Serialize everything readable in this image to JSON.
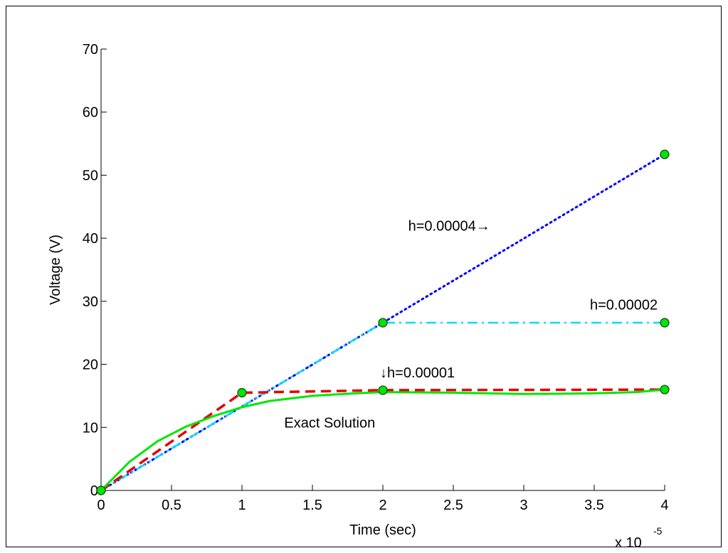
{
  "chart_data": {
    "type": "line",
    "xlabel": "Time (sec)",
    "ylabel": "Voltage (V)",
    "x_multiplier": "x 10",
    "x_multiplier_exp": "-5",
    "xlim": [
      0,
      4
    ],
    "ylim": [
      0,
      70
    ],
    "xticks": [
      0,
      0.5,
      1,
      1.5,
      2,
      2.5,
      3,
      3.5,
      4
    ],
    "xtick_labels": [
      "0",
      "0.5",
      "1",
      "1.5",
      "2",
      "2.5",
      "3",
      "3.5",
      "4"
    ],
    "yticks": [
      0,
      10,
      20,
      30,
      40,
      50,
      60,
      70
    ],
    "ytick_labels": [
      "0",
      "10",
      "20",
      "30",
      "40",
      "50",
      "60",
      "70"
    ],
    "grid": false,
    "series": [
      {
        "style": "dotted",
        "color": "#0000ff",
        "points": [
          [
            0,
            0
          ],
          [
            2,
            26.6
          ],
          [
            4,
            53.3
          ]
        ]
      },
      {
        "style": "dash-dot",
        "color": "#00dcff",
        "points": [
          [
            0,
            0
          ],
          [
            2,
            26.6
          ],
          [
            4,
            26.6
          ]
        ]
      },
      {
        "style": "dashed",
        "color": "#e60000",
        "points": [
          [
            0,
            0
          ],
          [
            1,
            15.5
          ],
          [
            2,
            15.9
          ],
          [
            4,
            16.0
          ]
        ]
      },
      {
        "style": "solid",
        "color": "#00e600",
        "points": [
          [
            0,
            0
          ],
          [
            0.2,
            4.5
          ],
          [
            0.4,
            7.8
          ],
          [
            0.6,
            10.1
          ],
          [
            0.8,
            11.8
          ],
          [
            1.0,
            13.2
          ],
          [
            1.2,
            14.2
          ],
          [
            1.5,
            15.0
          ],
          [
            1.8,
            15.4
          ],
          [
            2.0,
            15.6
          ],
          [
            2.5,
            15.5
          ],
          [
            3.0,
            15.3
          ],
          [
            3.5,
            15.4
          ],
          [
            3.8,
            15.6
          ],
          [
            4.0,
            16.0
          ]
        ]
      }
    ],
    "markers": {
      "color": "#00e600",
      "points": [
        [
          0,
          0
        ],
        [
          1,
          15.5
        ],
        [
          2,
          26.6
        ],
        [
          2,
          15.9
        ],
        [
          4,
          53.3
        ],
        [
          4,
          26.6
        ],
        [
          4,
          16.0
        ]
      ]
    },
    "annotations": [
      {
        "text": "h=0.00004→",
        "x": 2.18,
        "y": 41.2,
        "anchor": "start"
      },
      {
        "text": "h=0.00002",
        "x": 3.95,
        "y": 28.7,
        "anchor": "end"
      },
      {
        "text": "↓h=0.00001",
        "x": 1.98,
        "y": 17.9,
        "anchor": "start"
      },
      {
        "text": "Exact Solution",
        "x": 1.3,
        "y": 10.0,
        "anchor": "start"
      }
    ]
  }
}
